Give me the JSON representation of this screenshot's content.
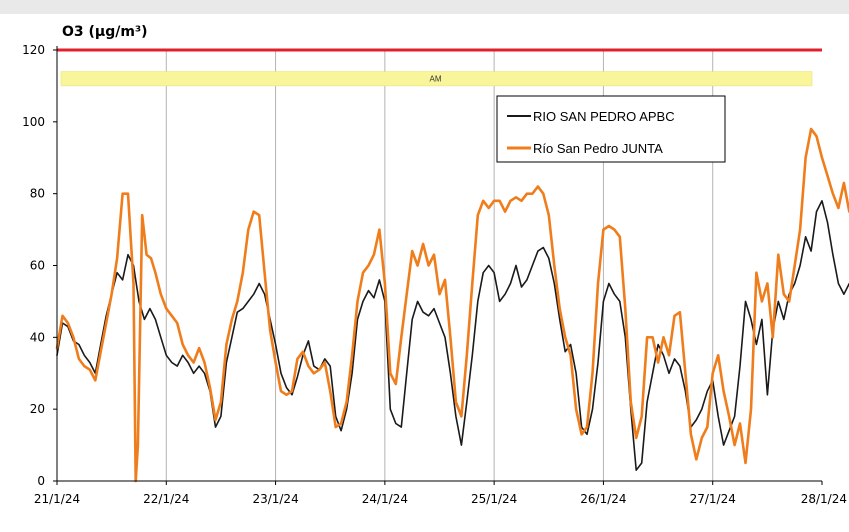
{
  "chart_data": {
    "type": "line",
    "title": "O3  (µg/m³)",
    "ylim": [
      0,
      120
    ],
    "yticks": [
      0,
      20,
      40,
      60,
      80,
      100,
      120
    ],
    "xlim": [
      "21/1/24",
      "28/1/24"
    ],
    "xticks": [
      "21/1/24",
      "22/1/24",
      "23/1/24",
      "24/1/24",
      "25/1/24",
      "26/1/24",
      "27/1/24",
      "28/1/24"
    ],
    "grid": "vertical lines at each date",
    "legend_position": "top-right",
    "reference_line": {
      "value": 120,
      "color": "#e0202a"
    },
    "band": {
      "from": 110,
      "to": 114,
      "label": "AM",
      "color": "#f8f59a"
    },
    "x_unit": "days",
    "series": [
      {
        "name": "RIO SAN PEDRO APBC",
        "color": "#1a1a1a",
        "points": [
          [
            0,
            35
          ],
          [
            0.05,
            44
          ],
          [
            0.1,
            43
          ],
          [
            0.15,
            39
          ],
          [
            0.2,
            38
          ],
          [
            0.25,
            35
          ],
          [
            0.3,
            33
          ],
          [
            0.35,
            30
          ],
          [
            0.4,
            38
          ],
          [
            0.45,
            46
          ],
          [
            0.5,
            52
          ],
          [
            0.55,
            58
          ],
          [
            0.6,
            56
          ],
          [
            0.65,
            63
          ],
          [
            0.7,
            60
          ],
          [
            0.75,
            50
          ],
          [
            0.8,
            45
          ],
          [
            0.85,
            48
          ],
          [
            0.9,
            45
          ],
          [
            0.95,
            40
          ],
          [
            1.0,
            35
          ],
          [
            1.05,
            33
          ],
          [
            1.1,
            32
          ],
          [
            1.15,
            35
          ],
          [
            1.2,
            33
          ],
          [
            1.25,
            30
          ],
          [
            1.3,
            32
          ],
          [
            1.35,
            30
          ],
          [
            1.4,
            25
          ],
          [
            1.45,
            15
          ],
          [
            1.5,
            18
          ],
          [
            1.55,
            33
          ],
          [
            1.6,
            40
          ],
          [
            1.65,
            47
          ],
          [
            1.7,
            48
          ],
          [
            1.75,
            50
          ],
          [
            1.8,
            52
          ],
          [
            1.85,
            55
          ],
          [
            1.9,
            52
          ],
          [
            1.95,
            45
          ],
          [
            2.0,
            38
          ],
          [
            2.05,
            30
          ],
          [
            2.1,
            26
          ],
          [
            2.15,
            24
          ],
          [
            2.2,
            29
          ],
          [
            2.25,
            35
          ],
          [
            2.3,
            39
          ],
          [
            2.35,
            32
          ],
          [
            2.4,
            31
          ],
          [
            2.45,
            34
          ],
          [
            2.5,
            32
          ],
          [
            2.55,
            18
          ],
          [
            2.6,
            14
          ],
          [
            2.65,
            20
          ],
          [
            2.7,
            30
          ],
          [
            2.75,
            45
          ],
          [
            2.8,
            50
          ],
          [
            2.85,
            53
          ],
          [
            2.9,
            51
          ],
          [
            2.95,
            56
          ],
          [
            3.0,
            50
          ],
          [
            3.05,
            20
          ],
          [
            3.1,
            16
          ],
          [
            3.15,
            15
          ],
          [
            3.2,
            30
          ],
          [
            3.25,
            45
          ],
          [
            3.3,
            50
          ],
          [
            3.35,
            47
          ],
          [
            3.4,
            46
          ],
          [
            3.45,
            48
          ],
          [
            3.5,
            44
          ],
          [
            3.55,
            40
          ],
          [
            3.6,
            30
          ],
          [
            3.65,
            18
          ],
          [
            3.7,
            10
          ],
          [
            3.75,
            22
          ],
          [
            3.8,
            35
          ],
          [
            3.85,
            50
          ],
          [
            3.9,
            58
          ],
          [
            3.95,
            60
          ],
          [
            4.0,
            58
          ],
          [
            4.05,
            50
          ],
          [
            4.1,
            52
          ],
          [
            4.15,
            55
          ],
          [
            4.2,
            60
          ],
          [
            4.25,
            54
          ],
          [
            4.3,
            56
          ],
          [
            4.35,
            60
          ],
          [
            4.4,
            64
          ],
          [
            4.45,
            65
          ],
          [
            4.5,
            62
          ],
          [
            4.55,
            55
          ],
          [
            4.6,
            45
          ],
          [
            4.65,
            36
          ],
          [
            4.7,
            38
          ],
          [
            4.75,
            30
          ],
          [
            4.8,
            15
          ],
          [
            4.85,
            13
          ],
          [
            4.9,
            20
          ],
          [
            4.95,
            33
          ],
          [
            5.0,
            50
          ],
          [
            5.05,
            55
          ],
          [
            5.1,
            52
          ],
          [
            5.15,
            50
          ],
          [
            5.2,
            40
          ],
          [
            5.25,
            20
          ],
          [
            5.3,
            3
          ],
          [
            5.35,
            5
          ],
          [
            5.4,
            22
          ],
          [
            5.45,
            30
          ],
          [
            5.5,
            38
          ],
          [
            5.55,
            35
          ],
          [
            5.6,
            30
          ],
          [
            5.65,
            34
          ],
          [
            5.7,
            32
          ],
          [
            5.75,
            25
          ],
          [
            5.8,
            15
          ],
          [
            5.85,
            17
          ],
          [
            5.9,
            20
          ],
          [
            5.95,
            25
          ],
          [
            6.0,
            28
          ],
          [
            6.05,
            18
          ],
          [
            6.1,
            10
          ],
          [
            6.15,
            14
          ],
          [
            6.2,
            18
          ],
          [
            6.25,
            32
          ],
          [
            6.3,
            50
          ],
          [
            6.35,
            45
          ],
          [
            6.4,
            38
          ],
          [
            6.45,
            45
          ],
          [
            6.5,
            24
          ],
          [
            6.55,
            42
          ],
          [
            6.6,
            50
          ],
          [
            6.65,
            45
          ],
          [
            6.7,
            52
          ],
          [
            6.75,
            55
          ],
          [
            6.8,
            60
          ],
          [
            6.85,
            68
          ],
          [
            6.9,
            64
          ],
          [
            6.95,
            75
          ],
          [
            7.0,
            78
          ],
          [
            7.05,
            72
          ],
          [
            7.1,
            63
          ],
          [
            7.15,
            55
          ],
          [
            7.2,
            52
          ],
          [
            7.25,
            55
          ],
          [
            7.3,
            51
          ],
          [
            7.35,
            53
          ]
        ]
      },
      {
        "name": "Río San Pedro JUNTA",
        "color": "#f07d1c",
        "points": [
          [
            0,
            37
          ],
          [
            0.05,
            46
          ],
          [
            0.1,
            44
          ],
          [
            0.15,
            40
          ],
          [
            0.2,
            34
          ],
          [
            0.25,
            32
          ],
          [
            0.3,
            31
          ],
          [
            0.35,
            28
          ],
          [
            0.4,
            36
          ],
          [
            0.45,
            44
          ],
          [
            0.5,
            52
          ],
          [
            0.55,
            62
          ],
          [
            0.6,
            80
          ],
          [
            0.65,
            80
          ],
          [
            0.7,
            55
          ],
          [
            0.72,
            0
          ],
          [
            0.74,
            10
          ],
          [
            0.78,
            74
          ],
          [
            0.82,
            63
          ],
          [
            0.86,
            62
          ],
          [
            0.9,
            58
          ],
          [
            0.95,
            52
          ],
          [
            1.0,
            48
          ],
          [
            1.05,
            46
          ],
          [
            1.1,
            44
          ],
          [
            1.15,
            38
          ],
          [
            1.2,
            35
          ],
          [
            1.25,
            33
          ],
          [
            1.3,
            37
          ],
          [
            1.35,
            33
          ],
          [
            1.4,
            26
          ],
          [
            1.45,
            17
          ],
          [
            1.5,
            22
          ],
          [
            1.55,
            38
          ],
          [
            1.6,
            45
          ],
          [
            1.65,
            50
          ],
          [
            1.7,
            58
          ],
          [
            1.75,
            70
          ],
          [
            1.8,
            75
          ],
          [
            1.85,
            74
          ],
          [
            1.9,
            58
          ],
          [
            1.95,
            42
          ],
          [
            2.0,
            33
          ],
          [
            2.05,
            25
          ],
          [
            2.1,
            24
          ],
          [
            2.15,
            25
          ],
          [
            2.2,
            34
          ],
          [
            2.25,
            36
          ],
          [
            2.3,
            32
          ],
          [
            2.35,
            30
          ],
          [
            2.4,
            31
          ],
          [
            2.45,
            33
          ],
          [
            2.5,
            25
          ],
          [
            2.55,
            15
          ],
          [
            2.6,
            16
          ],
          [
            2.65,
            22
          ],
          [
            2.7,
            35
          ],
          [
            2.75,
            50
          ],
          [
            2.8,
            58
          ],
          [
            2.85,
            60
          ],
          [
            2.9,
            63
          ],
          [
            2.95,
            70
          ],
          [
            3.0,
            55
          ],
          [
            3.05,
            30
          ],
          [
            3.1,
            27
          ],
          [
            3.15,
            40
          ],
          [
            3.2,
            52
          ],
          [
            3.25,
            64
          ],
          [
            3.3,
            60
          ],
          [
            3.35,
            66
          ],
          [
            3.4,
            60
          ],
          [
            3.45,
            63
          ],
          [
            3.5,
            52
          ],
          [
            3.55,
            56
          ],
          [
            3.6,
            40
          ],
          [
            3.65,
            22
          ],
          [
            3.7,
            18
          ],
          [
            3.75,
            35
          ],
          [
            3.8,
            55
          ],
          [
            3.85,
            74
          ],
          [
            3.9,
            78
          ],
          [
            3.95,
            76
          ],
          [
            4.0,
            78
          ],
          [
            4.05,
            78
          ],
          [
            4.1,
            75
          ],
          [
            4.15,
            78
          ],
          [
            4.2,
            79
          ],
          [
            4.25,
            78
          ],
          [
            4.3,
            80
          ],
          [
            4.35,
            80
          ],
          [
            4.4,
            82
          ],
          [
            4.45,
            80
          ],
          [
            4.5,
            74
          ],
          [
            4.55,
            60
          ],
          [
            4.6,
            48
          ],
          [
            4.65,
            40
          ],
          [
            4.7,
            35
          ],
          [
            4.75,
            20
          ],
          [
            4.8,
            13
          ],
          [
            4.85,
            15
          ],
          [
            4.9,
            30
          ],
          [
            4.95,
            55
          ],
          [
            5.0,
            70
          ],
          [
            5.05,
            71
          ],
          [
            5.1,
            70
          ],
          [
            5.15,
            68
          ],
          [
            5.2,
            48
          ],
          [
            5.25,
            22
          ],
          [
            5.3,
            12
          ],
          [
            5.35,
            18
          ],
          [
            5.4,
            40
          ],
          [
            5.45,
            40
          ],
          [
            5.5,
            33
          ],
          [
            5.55,
            40
          ],
          [
            5.6,
            35
          ],
          [
            5.65,
            46
          ],
          [
            5.7,
            47
          ],
          [
            5.75,
            30
          ],
          [
            5.8,
            13
          ],
          [
            5.85,
            6
          ],
          [
            5.9,
            12
          ],
          [
            5.95,
            15
          ],
          [
            6.0,
            30
          ],
          [
            6.05,
            35
          ],
          [
            6.1,
            25
          ],
          [
            6.15,
            18
          ],
          [
            6.2,
            10
          ],
          [
            6.25,
            16
          ],
          [
            6.3,
            5
          ],
          [
            6.35,
            20
          ],
          [
            6.4,
            58
          ],
          [
            6.45,
            50
          ],
          [
            6.5,
            55
          ],
          [
            6.55,
            40
          ],
          [
            6.6,
            63
          ],
          [
            6.65,
            52
          ],
          [
            6.7,
            50
          ],
          [
            6.75,
            60
          ],
          [
            6.8,
            70
          ],
          [
            6.85,
            90
          ],
          [
            6.9,
            98
          ],
          [
            6.95,
            96
          ],
          [
            7.0,
            90
          ],
          [
            7.05,
            85
          ],
          [
            7.1,
            80
          ],
          [
            7.15,
            76
          ],
          [
            7.2,
            83
          ],
          [
            7.25,
            75
          ],
          [
            7.3,
            80
          ]
        ]
      }
    ]
  }
}
